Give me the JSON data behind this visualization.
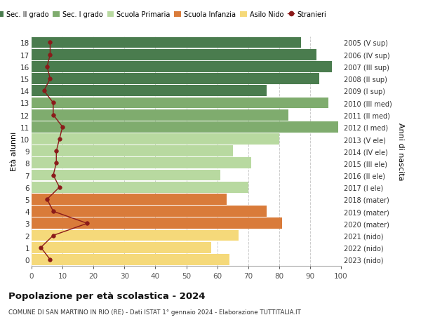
{
  "ages": [
    18,
    17,
    16,
    15,
    14,
    13,
    12,
    11,
    10,
    9,
    8,
    7,
    6,
    5,
    4,
    3,
    2,
    1,
    0
  ],
  "bar_values": [
    87,
    92,
    97,
    93,
    76,
    96,
    83,
    99,
    80,
    65,
    71,
    61,
    70,
    63,
    76,
    81,
    67,
    58,
    64
  ],
  "stranieri": [
    6,
    6,
    5,
    6,
    4,
    7,
    7,
    10,
    9,
    8,
    8,
    7,
    9,
    5,
    7,
    18,
    7,
    3,
    6
  ],
  "right_labels": [
    "2005 (V sup)",
    "2006 (IV sup)",
    "2007 (III sup)",
    "2008 (II sup)",
    "2009 (I sup)",
    "2010 (III med)",
    "2011 (II med)",
    "2012 (I med)",
    "2013 (V ele)",
    "2014 (IV ele)",
    "2015 (III ele)",
    "2016 (II ele)",
    "2017 (I ele)",
    "2018 (mater)",
    "2019 (mater)",
    "2020 (mater)",
    "2021 (nido)",
    "2022 (nido)",
    "2023 (nido)"
  ],
  "bar_colors": [
    "#4a7c4e",
    "#4a7c4e",
    "#4a7c4e",
    "#4a7c4e",
    "#4a7c4e",
    "#7fac6e",
    "#7fac6e",
    "#7fac6e",
    "#b8d9a0",
    "#b8d9a0",
    "#b8d9a0",
    "#b8d9a0",
    "#b8d9a0",
    "#d97b3a",
    "#d97b3a",
    "#d97b3a",
    "#f5d97a",
    "#f5d97a",
    "#f5d97a"
  ],
  "legend_colors": [
    "#4a7c4e",
    "#7fac6e",
    "#b8d9a0",
    "#d97b3a",
    "#f5d97a",
    "#b22222"
  ],
  "legend_labels": [
    "Sec. II grado",
    "Sec. I grado",
    "Scuola Primaria",
    "Scuola Infanzia",
    "Asilo Nido",
    "Stranieri"
  ],
  "ylabel_left": "Età alunni",
  "ylabel_right": "Anni di nascita",
  "title_main": "Popolazione per età scolastica - 2024",
  "title_sub": "COMUNE DI SAN MARTINO IN RIO (RE) - Dati ISTAT 1° gennaio 2024 - Elaborazione TUTTITALIA.IT",
  "xlim": [
    0,
    100
  ],
  "bg_color": "#ffffff",
  "grid_color": "#cccccc",
  "stranieri_color": "#8b1a1a",
  "bar_height": 0.92
}
